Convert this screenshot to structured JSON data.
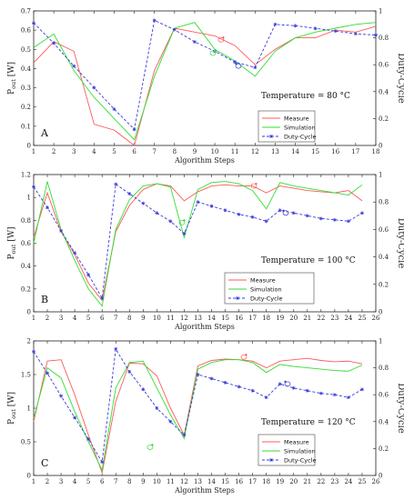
{
  "colors": {
    "measure": "#ff5a5a",
    "simulation": "#33dd33",
    "duty": "#3a3ad8",
    "axis": "#222222"
  },
  "chart_data": [
    {
      "type": "line",
      "panel_letter": "A",
      "annotation": "Temperature = 80 °C",
      "xlabel": "Algorithm Steps",
      "ylabel_main": "P",
      "ylabel_sub": "out",
      "ylabel_unit": " [W]",
      "y2label": "Duty-Cycle",
      "xlim": [
        1,
        18
      ],
      "ylim": [
        0,
        0.7
      ],
      "y2lim": [
        0,
        1
      ],
      "xticks": [
        "1",
        "2",
        "3",
        "4",
        "5",
        "6",
        "7",
        "8",
        "9",
        "10",
        "11",
        "12",
        "13",
        "14",
        "15",
        "16",
        "17",
        "18"
      ],
      "yticks": [
        "0",
        "0.1",
        "0.2",
        "0.3",
        "0.4",
        "0.5",
        "0.6",
        "0.7"
      ],
      "y2ticks": [
        "0",
        "0.2",
        "0.4",
        "0.6",
        "0.8",
        "1"
      ],
      "legend": [
        "Measure",
        "Simulation",
        "Duty-Cycle"
      ],
      "series": [
        {
          "name": "Measure",
          "axis": "left",
          "style": "solid",
          "color": "measure",
          "x": [
            1,
            2,
            3,
            4,
            5,
            6,
            7,
            8,
            9,
            10,
            11,
            12,
            13,
            14,
            15,
            16,
            17,
            18
          ],
          "values": [
            0.43,
            0.54,
            0.49,
            0.11,
            0.08,
            0.0,
            0.39,
            0.61,
            0.59,
            0.57,
            0.52,
            0.42,
            0.5,
            0.56,
            0.56,
            0.6,
            0.59,
            0.62
          ]
        },
        {
          "name": "Simulation",
          "axis": "left",
          "style": "solid",
          "color": "simulation",
          "x": [
            1,
            2,
            3,
            4,
            5,
            6,
            7,
            8,
            9,
            10,
            11,
            12,
            13,
            14,
            15,
            16,
            17,
            18
          ],
          "values": [
            0.51,
            0.58,
            0.39,
            0.25,
            0.14,
            0.03,
            0.36,
            0.61,
            0.64,
            0.5,
            0.44,
            0.36,
            0.49,
            0.56,
            0.59,
            0.61,
            0.63,
            0.64
          ]
        },
        {
          "name": "Duty-Cycle",
          "axis": "right",
          "style": "dashed",
          "color": "duty",
          "x": [
            1,
            2,
            3,
            4,
            5,
            6,
            7,
            8,
            9,
            10,
            11,
            12,
            13,
            14,
            15,
            16,
            17,
            18
          ],
          "values": [
            0.91,
            0.76,
            0.59,
            0.43,
            0.27,
            0.12,
            0.93,
            0.86,
            0.77,
            0.7,
            0.62,
            0.58,
            0.9,
            0.89,
            0.87,
            0.85,
            0.83,
            0.82
          ]
        }
      ]
    },
    {
      "type": "line",
      "panel_letter": "B",
      "annotation": "Temperature = 100 °C",
      "xlabel": "Algorithm Steps",
      "ylabel_main": "P",
      "ylabel_sub": "out",
      "ylabel_unit": " [W]",
      "y2label": "Duty-Cycle",
      "xlim": [
        1,
        26
      ],
      "ylim": [
        0,
        1.2
      ],
      "y2lim": [
        0,
        1
      ],
      "xticks": [
        "1",
        "2",
        "3",
        "4",
        "5",
        "6",
        "7",
        "8",
        "9",
        "10",
        "11",
        "12",
        "13",
        "14",
        "15",
        "16",
        "17",
        "18",
        "19",
        "20",
        "21",
        "22",
        "23",
        "24",
        "25",
        "26"
      ],
      "yticks": [
        "0",
        "0.2",
        "0.4",
        "0.6",
        "0.8",
        "1",
        "1.2"
      ],
      "y2ticks": [
        "0",
        "0.2",
        "0.4",
        "0.6",
        "0.8",
        "1"
      ],
      "legend": [
        "Measure",
        "Simulation",
        "Duty-Cycle"
      ],
      "series": [
        {
          "name": "Measure",
          "axis": "left",
          "style": "solid",
          "color": "measure",
          "x": [
            1,
            2,
            3,
            4,
            5,
            6,
            7,
            8,
            9,
            10,
            11,
            12,
            13,
            14,
            15,
            16,
            17,
            18,
            19,
            20,
            21,
            22,
            23,
            24,
            25
          ],
          "values": [
            0.65,
            1.04,
            0.7,
            0.5,
            0.25,
            0.1,
            0.7,
            0.93,
            1.07,
            1.12,
            1.1,
            0.97,
            1.05,
            1.1,
            1.11,
            1.1,
            1.1,
            1.04,
            1.1,
            1.08,
            1.06,
            1.05,
            1.04,
            1.06,
            0.97
          ]
        },
        {
          "name": "Simulation",
          "axis": "left",
          "style": "solid",
          "color": "simulation",
          "x": [
            1,
            2,
            3,
            4,
            5,
            6,
            7,
            8,
            9,
            10,
            11,
            12,
            13,
            14,
            15,
            16,
            17,
            18,
            19,
            20,
            21,
            22,
            23,
            24,
            25
          ],
          "values": [
            0.6,
            1.14,
            0.72,
            0.45,
            0.2,
            0.05,
            0.72,
            0.98,
            1.1,
            1.12,
            1.09,
            0.65,
            1.07,
            1.13,
            1.14,
            1.12,
            1.06,
            0.9,
            1.13,
            1.1,
            1.08,
            1.06,
            1.04,
            1.02,
            1.11
          ]
        },
        {
          "name": "Duty-Cycle",
          "axis": "right",
          "style": "dashed",
          "color": "duty",
          "x": [
            1,
            2,
            3,
            4,
            5,
            6,
            7,
            8,
            9,
            10,
            11,
            12,
            13,
            14,
            15,
            16,
            17,
            18,
            19,
            20,
            21,
            22,
            23,
            24,
            25
          ],
          "values": [
            0.91,
            0.76,
            0.59,
            0.43,
            0.27,
            0.1,
            0.93,
            0.86,
            0.79,
            0.72,
            0.66,
            0.57,
            0.8,
            0.77,
            0.74,
            0.71,
            0.69,
            0.66,
            0.74,
            0.72,
            0.7,
            0.68,
            0.67,
            0.66,
            0.72
          ]
        }
      ]
    },
    {
      "type": "line",
      "panel_letter": "C",
      "annotation": "Temperature = 120 °C",
      "xlabel": "Algorithm Steps",
      "ylabel_main": "P",
      "ylabel_sub": "out",
      "ylabel_unit": " [W]",
      "y2label": "Duty-Cycle",
      "xlim": [
        1,
        26
      ],
      "ylim": [
        0,
        2
      ],
      "y2lim": [
        0,
        1
      ],
      "xticks": [
        "1",
        "2",
        "3",
        "4",
        "5",
        "6",
        "7",
        "8",
        "9",
        "10",
        "11",
        "12",
        "13",
        "14",
        "15",
        "16",
        "17",
        "18",
        "19",
        "20",
        "21",
        "22",
        "23",
        "24",
        "25",
        "26"
      ],
      "yticks": [
        "0",
        "0.5",
        "1",
        "1.5",
        "2"
      ],
      "y2ticks": [
        "0",
        "0.2",
        "0.4",
        "0.6",
        "0.8",
        "1"
      ],
      "legend": [
        "Measure",
        "Simulation",
        "Duty-Cycle"
      ],
      "series": [
        {
          "name": "Measure",
          "axis": "left",
          "style": "solid",
          "color": "measure",
          "x": [
            1,
            2,
            3,
            4,
            5,
            6,
            7,
            8,
            9,
            10,
            11,
            12,
            13,
            14,
            15,
            16,
            17,
            18,
            19,
            20,
            21,
            22,
            23,
            24,
            25
          ],
          "values": [
            0.8,
            1.7,
            1.72,
            1.2,
            0.6,
            0.04,
            1.1,
            1.67,
            1.66,
            1.48,
            1.0,
            0.6,
            1.63,
            1.71,
            1.73,
            1.72,
            1.7,
            1.6,
            1.7,
            1.72,
            1.74,
            1.71,
            1.69,
            1.7,
            1.66
          ]
        },
        {
          "name": "Simulation",
          "axis": "left",
          "style": "solid",
          "color": "simulation",
          "x": [
            1,
            2,
            3,
            4,
            5,
            6,
            7,
            8,
            9,
            10,
            11,
            12,
            13,
            14,
            15,
            16,
            17,
            18,
            19,
            20,
            21,
            22,
            23,
            24,
            25
          ],
          "values": [
            0.85,
            1.6,
            1.45,
            0.95,
            0.5,
            0.08,
            1.3,
            1.68,
            1.7,
            1.3,
            0.9,
            0.55,
            1.58,
            1.68,
            1.72,
            1.72,
            1.68,
            1.53,
            1.65,
            1.62,
            1.6,
            1.58,
            1.56,
            1.55,
            1.64
          ]
        },
        {
          "name": "Duty-Cycle",
          "axis": "right",
          "style": "dashed",
          "color": "duty",
          "x": [
            1,
            2,
            3,
            4,
            5,
            6,
            7,
            8,
            9,
            10,
            11,
            12,
            13,
            14,
            15,
            16,
            17,
            18,
            19,
            20,
            21,
            22,
            23,
            24,
            25
          ],
          "values": [
            0.92,
            0.76,
            0.59,
            0.43,
            0.27,
            0.1,
            0.94,
            0.77,
            0.64,
            0.5,
            0.4,
            0.3,
            0.75,
            0.72,
            0.69,
            0.66,
            0.63,
            0.58,
            0.68,
            0.65,
            0.63,
            0.61,
            0.6,
            0.58,
            0.64
          ]
        }
      ]
    }
  ]
}
